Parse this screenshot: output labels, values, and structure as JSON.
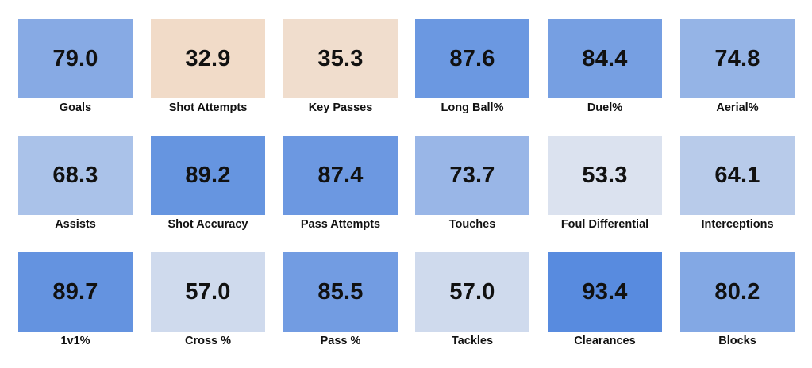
{
  "chart_data": {
    "type": "heatmap",
    "title": "",
    "colors": {
      "low": "#f3d9c1",
      "mid": "#e6e9f0",
      "high": "#5388de"
    },
    "color_domain": [
      30,
      50,
      95
    ],
    "rows": 3,
    "columns": 6,
    "cells": [
      {
        "label": "Goals",
        "value": 79.0
      },
      {
        "label": "Shot Attempts",
        "value": 32.9
      },
      {
        "label": "Key Passes",
        "value": 35.3
      },
      {
        "label": "Long Ball%",
        "value": 87.6
      },
      {
        "label": "Duel%",
        "value": 84.4
      },
      {
        "label": "Aerial%",
        "value": 74.8
      },
      {
        "label": "Assists",
        "value": 68.3
      },
      {
        "label": "Shot Accuracy",
        "value": 89.2
      },
      {
        "label": "Pass Attempts",
        "value": 87.4
      },
      {
        "label": "Touches",
        "value": 73.7
      },
      {
        "label": "Foul Differential",
        "value": 53.3
      },
      {
        "label": "Interceptions",
        "value": 64.1
      },
      {
        "label": "1v1%",
        "value": 89.7
      },
      {
        "label": "Cross %",
        "value": 57.0
      },
      {
        "label": "Pass %",
        "value": 85.5
      },
      {
        "label": "Tackles",
        "value": 57.0
      },
      {
        "label": "Clearances",
        "value": 93.4
      },
      {
        "label": "Blocks",
        "value": 80.2
      }
    ]
  }
}
